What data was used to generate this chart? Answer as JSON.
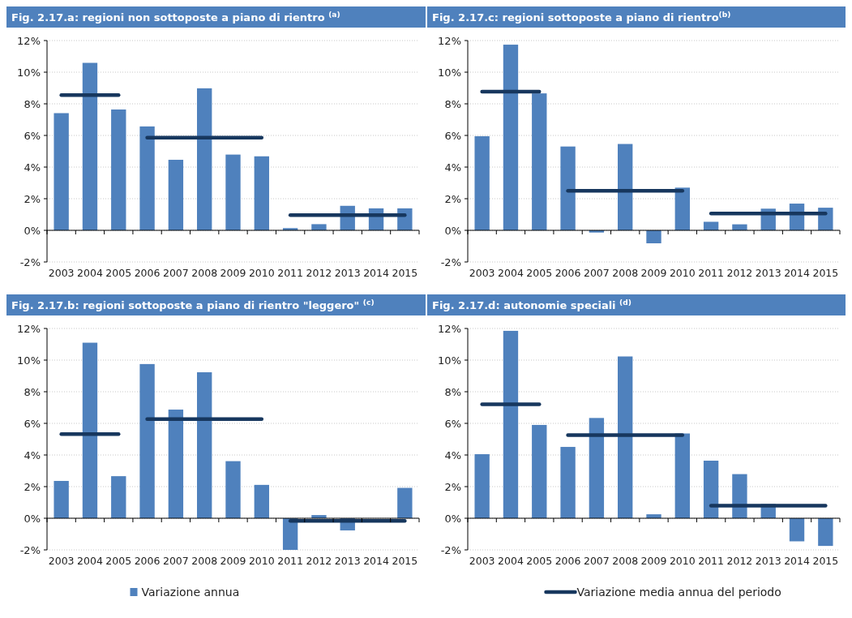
{
  "chart_data": [
    {
      "type": "bar",
      "title": "Fig. 2.17.a: regioni non sottoposte a piano di rientro $^{(a)}$",
      "categories": [
        "2003",
        "2004",
        "2005",
        "2006",
        "2007",
        "2008",
        "2009",
        "2010",
        "2011",
        "2012",
        "2013",
        "2014",
        "2015"
      ],
      "ylim": [
        -2,
        12
      ],
      "yticks": [
        {
          "value": -2,
          "label": "-2%"
        },
        {
          "value": 0,
          "label": "0%"
        },
        {
          "value": 2,
          "label": "2%"
        },
        {
          "value": 4,
          "label": "4%"
        },
        {
          "value": 6,
          "label": "6%"
        },
        {
          "value": 8,
          "label": "8%"
        },
        {
          "value": 10,
          "label": "10%"
        },
        {
          "value": 12,
          "label": "12%"
        }
      ],
      "grid": "y",
      "series": [
        {
          "color": "#4f81bd",
          "values": [
            7.41,
            10.59,
            7.64,
            6.57,
            4.46,
            8.98,
            4.79,
            4.68,
            0.14,
            0.39,
            1.55,
            1.39,
            1.39
          ]
        },
        {
          "type": "line",
          "color": "#17375e",
          "values": [
            8.55,
            8.55,
            8.55,
            null,
            null,
            null,
            null,
            null,
            null,
            null,
            null,
            null,
            null
          ]
        },
        {
          "type": "line",
          "color": "#17375e",
          "values": [
            null,
            null,
            null,
            5.86,
            5.86,
            5.86,
            5.86,
            5.86,
            null,
            null,
            null,
            null,
            null
          ]
        },
        {
          "type": "line",
          "color": "#17375e",
          "values": [
            null,
            null,
            null,
            null,
            null,
            null,
            null,
            null,
            0.96,
            0.96,
            0.96,
            0.96,
            0.96
          ]
        }
      ]
    },
    {
      "type": "bar",
      "title": "Fig. 2.17.c: regioni sottoposte a piano di rientro$^{(b)}$",
      "categories": [
        "2003",
        "2004",
        "2005",
        "2006",
        "2007",
        "2008",
        "2009",
        "2010",
        "2011",
        "2012",
        "2013",
        "2014",
        "2015"
      ],
      "ylim": [
        -2,
        12
      ],
      "yticks": [
        {
          "value": -2,
          "label": "-2%"
        },
        {
          "value": 0,
          "label": "0%"
        },
        {
          "value": 2,
          "label": "2%"
        },
        {
          "value": 4,
          "label": "4%"
        },
        {
          "value": 6,
          "label": "6%"
        },
        {
          "value": 8,
          "label": "8%"
        },
        {
          "value": 10,
          "label": "10%"
        },
        {
          "value": 12,
          "label": "12%"
        }
      ],
      "grid": "y",
      "series": [
        {
          "color": "#4f81bd",
          "values": [
            5.95,
            11.74,
            8.66,
            5.3,
            -0.14,
            5.46,
            -0.82,
            2.7,
            0.54,
            0.38,
            1.37,
            1.69,
            1.43
          ]
        },
        {
          "type": "line",
          "color": "#17375e",
          "values": [
            8.77,
            8.77,
            8.77,
            null,
            null,
            null,
            null,
            null,
            null,
            null,
            null,
            null,
            null
          ]
        },
        {
          "type": "line",
          "color": "#17375e",
          "values": [
            null,
            null,
            null,
            2.5,
            2.5,
            2.5,
            2.5,
            2.5,
            null,
            null,
            null,
            null,
            null
          ]
        },
        {
          "type": "line",
          "color": "#17375e",
          "values": [
            null,
            null,
            null,
            null,
            null,
            null,
            null,
            null,
            1.06,
            1.06,
            1.06,
            1.06,
            1.06
          ]
        }
      ]
    },
    {
      "type": "bar",
      "title": "Fig. 2.17.b: regioni sottoposte a piano di rientro \"leggero\" $^{(c)}$",
      "categories": [
        "2003",
        "2004",
        "2005",
        "2006",
        "2007",
        "2008",
        "2009",
        "2010",
        "2011",
        "2012",
        "2013",
        "2014",
        "2015"
      ],
      "ylim": [
        -2,
        12
      ],
      "yticks": [
        {
          "value": -2,
          "label": "-2%"
        },
        {
          "value": 0,
          "label": "0%"
        },
        {
          "value": 2,
          "label": "2%"
        },
        {
          "value": 4,
          "label": "4%"
        },
        {
          "value": 6,
          "label": "6%"
        },
        {
          "value": 8,
          "label": "8%"
        },
        {
          "value": 10,
          "label": "10%"
        },
        {
          "value": 12,
          "label": "12%"
        }
      ],
      "grid": "y",
      "legend": "bottom",
      "series": [
        {
          "name": "Variazione annua",
          "color": "#4f81bd",
          "values": [
            2.36,
            11.1,
            2.66,
            9.75,
            6.87,
            9.23,
            3.61,
            2.11,
            -2,
            0.2,
            -0.77,
            null,
            1.92
          ]
        },
        {
          "type": "line",
          "color": "#17375e",
          "values": [
            5.32,
            5.32,
            5.32,
            null,
            null,
            null,
            null,
            null,
            null,
            null,
            null,
            null,
            null
          ]
        },
        {
          "type": "line",
          "color": "#17375e",
          "values": [
            null,
            null,
            null,
            6.27,
            6.27,
            6.27,
            6.27,
            6.27,
            null,
            null,
            null,
            null,
            null
          ]
        },
        {
          "type": "line",
          "color": "#17375e",
          "values": [
            null,
            null,
            null,
            null,
            null,
            null,
            null,
            null,
            -0.17,
            -0.17,
            -0.17,
            -0.17,
            -0.17
          ]
        }
      ]
    },
    {
      "type": "bar",
      "title": "Fig. 2.17.d: autonomie speciali $^{(d)}$",
      "categories": [
        "2003",
        "2004",
        "2005",
        "2006",
        "2007",
        "2008",
        "2009",
        "2010",
        "2011",
        "2012",
        "2013",
        "2014",
        "2015"
      ],
      "ylim": [
        -2,
        12
      ],
      "yticks": [
        {
          "value": -2,
          "label": "-2%"
        },
        {
          "value": 0,
          "label": "0%"
        },
        {
          "value": 2,
          "label": "2%"
        },
        {
          "value": 4,
          "label": "4%"
        },
        {
          "value": 6,
          "label": "6%"
        },
        {
          "value": 8,
          "label": "8%"
        },
        {
          "value": 10,
          "label": "10%"
        },
        {
          "value": 12,
          "label": "12%"
        }
      ],
      "grid": "y",
      "legend": "bottom",
      "series": [
        {
          "color": "#4f81bd",
          "values": [
            4.05,
            11.85,
            5.9,
            4.51,
            6.34,
            10.23,
            0.25,
            5.36,
            3.64,
            2.79,
            0.9,
            -1.46,
            -1.75
          ]
        },
        {
          "type": "line",
          "name": "Variazione media annua del periodo",
          "color": "#17375e",
          "values": [
            7.21,
            7.21,
            7.21,
            null,
            null,
            null,
            null,
            null,
            null,
            null,
            null,
            null,
            null
          ]
        },
        {
          "type": "line",
          "color": "#17375e",
          "values": [
            null,
            null,
            null,
            5.26,
            5.26,
            5.26,
            5.26,
            5.26,
            null,
            null,
            null,
            null,
            null
          ]
        },
        {
          "type": "line",
          "color": "#17375e",
          "values": [
            null,
            null,
            null,
            null,
            null,
            null,
            null,
            null,
            0.8,
            0.8,
            0.8,
            0.8,
            0.8
          ]
        }
      ]
    }
  ]
}
